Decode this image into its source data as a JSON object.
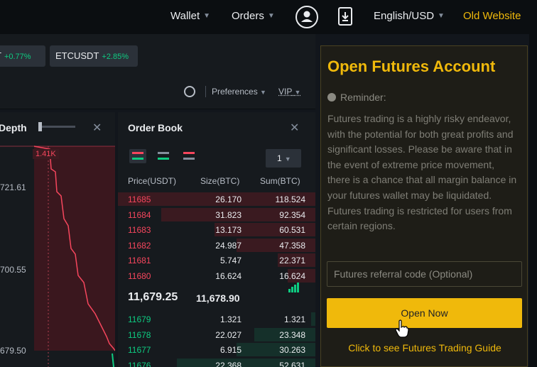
{
  "nav": {
    "wallet": "Wallet",
    "orders": "Orders",
    "language": "English/USD",
    "old_website": "Old Website",
    "user_icon": "user-icon",
    "download_icon": "download-icon"
  },
  "tickers": [
    {
      "symbol": "T",
      "change": "+0.77%"
    },
    {
      "symbol": "ETCUSDT",
      "change": "+2.85%"
    }
  ],
  "settings": {
    "preferences": "Preferences",
    "vip": "VIP"
  },
  "depth": {
    "title": "Depth",
    "tag": "1.41K",
    "labels": [
      "721.61",
      "700.55",
      "679.50"
    ]
  },
  "orderbook": {
    "title": "Order Book",
    "precision": "1",
    "headers": {
      "price": "Price(USDT)",
      "size": "Size(BTC)",
      "sum": "Sum(BTC)"
    },
    "asks": [
      {
        "price": "11685",
        "size": "26.170",
        "sum": "118.524",
        "depth": 1.0
      },
      {
        "price": "11684",
        "size": "31.823",
        "sum": "92.354",
        "depth": 0.78
      },
      {
        "price": "11683",
        "size": "13.173",
        "sum": "60.531",
        "depth": 0.51
      },
      {
        "price": "11682",
        "size": "24.987",
        "sum": "47.358",
        "depth": 0.4
      },
      {
        "price": "11681",
        "size": "5.747",
        "sum": "22.371",
        "depth": 0.19
      },
      {
        "price": "11680",
        "size": "16.624",
        "sum": "16.624",
        "depth": 0.14
      }
    ],
    "last_price": "11,679.25",
    "mark_price": "11,678.90",
    "bids": [
      {
        "price": "11679",
        "size": "1.321",
        "sum": "1.321",
        "depth": 0.02
      },
      {
        "price": "11678",
        "size": "22.027",
        "sum": "23.348",
        "depth": 0.31
      },
      {
        "price": "11677",
        "size": "6.915",
        "sum": "30.263",
        "depth": 0.4
      },
      {
        "price": "11676",
        "size": "22.368",
        "sum": "52.631",
        "depth": 0.7
      }
    ]
  },
  "futures": {
    "title": "Open Futures Account",
    "reminder": "Reminder:",
    "warning": "Futures trading is a highly risky endeavor, with the potential for both great profits and significant losses. Please be aware that in the event of extreme price movement, there is a chance that all margin balance in your futures wallet may be liquidated. Futures trading is restricted for users from certain regions.",
    "referral_placeholder": "Futures referral code (Optional)",
    "open_button": "Open Now",
    "guide_link": "Click to see Futures Trading Guide"
  },
  "colors": {
    "accent": "#f0b90b",
    "ask": "#f6465d",
    "bid": "#0ecb81"
  }
}
